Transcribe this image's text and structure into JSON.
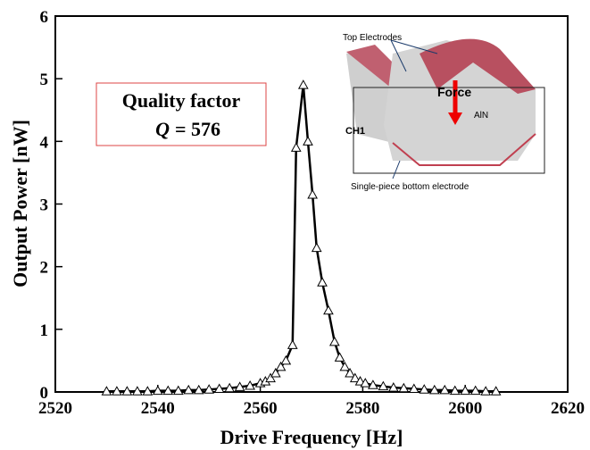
{
  "chart_data": {
    "type": "line",
    "xlabel": "Drive Frequency [Hz]",
    "ylabel": "Output Power [nW]",
    "x": [
      2530,
      2532,
      2534,
      2536,
      2538,
      2540,
      2542,
      2544,
      2546,
      2548,
      2550,
      2552,
      2554,
      2556,
      2558,
      2560,
      2561,
      2562,
      2563,
      2564,
      2565,
      2566.3,
      2567,
      2568.4,
      2569.3,
      2570.2,
      2571,
      2572.1,
      2573.3,
      2574.5,
      2575.5,
      2576.5,
      2577.5,
      2578.5,
      2579.5,
      2580.5,
      2582,
      2584,
      2586,
      2588,
      2590,
      2592,
      2594,
      2596,
      2598,
      2600,
      2602,
      2604,
      2606
    ],
    "series": [
      {
        "color": "#000000",
        "marker": "triangle",
        "values": [
          0.01,
          0.01,
          0.01,
          0.01,
          0.01,
          0.02,
          0.02,
          0.02,
          0.03,
          0.03,
          0.04,
          0.05,
          0.06,
          0.08,
          0.1,
          0.14,
          0.17,
          0.22,
          0.3,
          0.4,
          0.5,
          0.75,
          3.9,
          4.9,
          4.0,
          3.15,
          2.3,
          1.75,
          1.3,
          0.8,
          0.55,
          0.4,
          0.3,
          0.22,
          0.17,
          0.14,
          0.11,
          0.09,
          0.07,
          0.06,
          0.05,
          0.04,
          0.03,
          0.03,
          0.02,
          0.02,
          0.02,
          0.01,
          0.01
        ]
      }
    ],
    "xlim": [
      2520,
      2620
    ],
    "xticks": [
      2520,
      2540,
      2560,
      2580,
      2600,
      2620
    ],
    "ylim": [
      0,
      6
    ],
    "yticks": [
      0,
      1,
      2,
      3,
      4,
      5,
      6
    ],
    "annotations": {
      "box_title": "Quality factor",
      "q_symbol": "Q",
      "q_value": "= 576"
    },
    "inset": {
      "top_electrodes": "Top Electrodes",
      "force": "Force",
      "material": "AlN",
      "channel": "CH1",
      "bottom_electrode": "Single-piece bottom electrode"
    }
  }
}
